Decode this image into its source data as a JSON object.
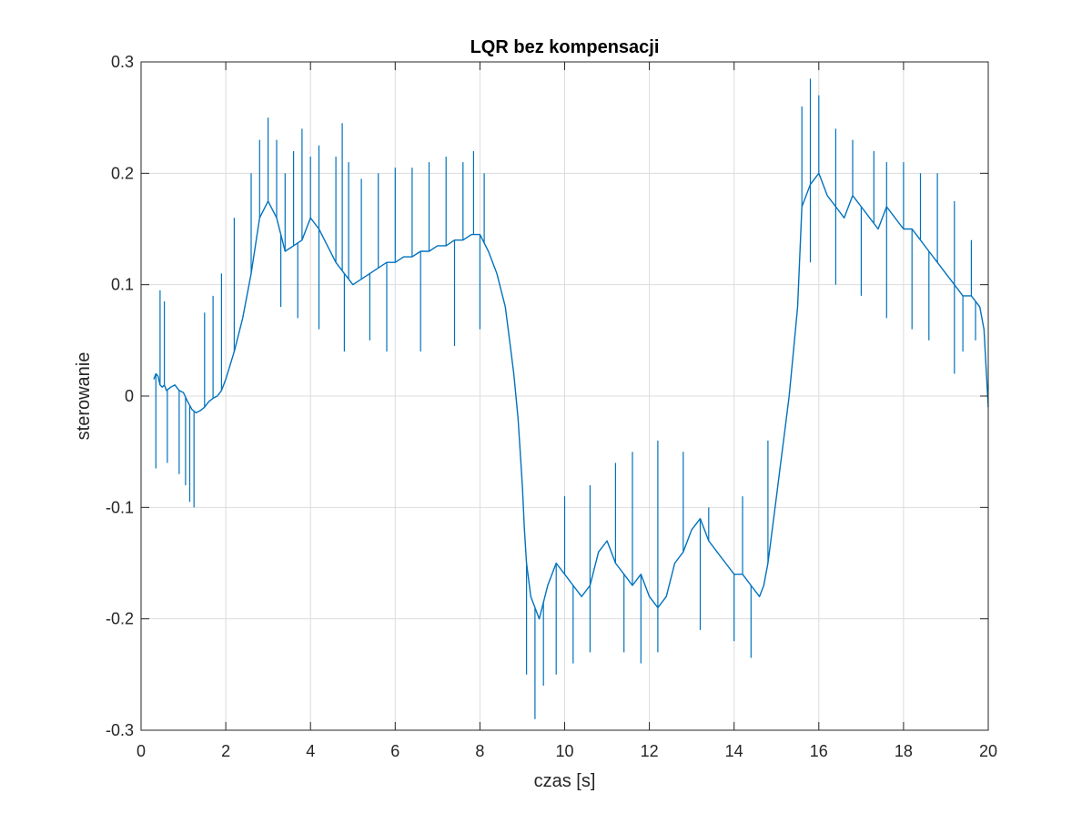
{
  "chart_data": {
    "type": "line",
    "title": "LQR bez kompensacji",
    "xlabel": "czas [s]",
    "ylabel": "sterowanie",
    "xlim": [
      0,
      20
    ],
    "ylim": [
      -0.3,
      0.3
    ],
    "grid": true,
    "legend": "none",
    "x_ticks": [
      0,
      2,
      4,
      6,
      8,
      10,
      12,
      14,
      16,
      18,
      20
    ],
    "x_tick_labels": [
      "0",
      "2",
      "4",
      "6",
      "8",
      "10",
      "12",
      "14",
      "16",
      "18",
      "20"
    ],
    "y_ticks": [
      -0.3,
      -0.2,
      -0.1,
      0,
      0.1,
      0.2,
      0.3
    ],
    "y_tick_labels": [
      "-0.3",
      "-0.2",
      "-0.1",
      "0",
      "0.1",
      "0.2",
      "0.3"
    ],
    "series": [
      {
        "color": "#0072BD",
        "x": [
          0.3,
          0.35,
          0.4,
          0.45,
          0.5,
          0.55,
          0.6,
          0.7,
          0.8,
          0.9,
          1.0,
          1.1,
          1.2,
          1.3,
          1.4,
          1.5,
          1.6,
          1.7,
          1.8,
          1.9,
          2.0,
          2.2,
          2.4,
          2.6,
          2.8,
          3.0,
          3.2,
          3.4,
          3.6,
          3.8,
          4.0,
          4.2,
          4.4,
          4.6,
          4.8,
          5.0,
          5.2,
          5.4,
          5.6,
          5.8,
          6.0,
          6.2,
          6.4,
          6.6,
          6.8,
          7.0,
          7.2,
          7.4,
          7.6,
          7.8,
          8.0,
          8.2,
          8.4,
          8.6,
          8.7,
          8.8,
          8.9,
          9.0,
          9.05,
          9.1,
          9.2,
          9.4,
          9.6,
          9.8,
          10.0,
          10.2,
          10.4,
          10.6,
          10.8,
          11.0,
          11.2,
          11.4,
          11.6,
          11.8,
          12.0,
          12.2,
          12.4,
          12.6,
          12.8,
          13.0,
          13.2,
          13.4,
          13.6,
          13.8,
          14.0,
          14.2,
          14.4,
          14.6,
          14.7,
          14.8,
          14.9,
          15.0,
          15.1,
          15.2,
          15.3,
          15.4,
          15.5,
          15.6,
          15.8,
          16.0,
          16.2,
          16.4,
          16.6,
          16.8,
          17.0,
          17.2,
          17.4,
          17.6,
          17.8,
          18.0,
          18.2,
          18.4,
          18.6,
          18.8,
          19.0,
          19.2,
          19.4,
          19.6,
          19.8,
          19.9,
          20.0
        ],
        "y": [
          0.015,
          0.02,
          0.018,
          0.01,
          0.008,
          0.01,
          0.005,
          0.008,
          0.01,
          0.005,
          0.003,
          -0.005,
          -0.012,
          -0.015,
          -0.013,
          -0.01,
          -0.005,
          -0.002,
          0.0,
          0.005,
          0.015,
          0.04,
          0.07,
          0.11,
          0.16,
          0.175,
          0.16,
          0.13,
          0.135,
          0.14,
          0.16,
          0.15,
          0.135,
          0.12,
          0.11,
          0.1,
          0.105,
          0.11,
          0.115,
          0.12,
          0.12,
          0.125,
          0.125,
          0.13,
          0.13,
          0.135,
          0.135,
          0.14,
          0.14,
          0.145,
          0.145,
          0.13,
          0.11,
          0.08,
          0.05,
          0.02,
          -0.02,
          -0.08,
          -0.12,
          -0.15,
          -0.18,
          -0.2,
          -0.17,
          -0.15,
          -0.16,
          -0.17,
          -0.18,
          -0.17,
          -0.14,
          -0.13,
          -0.15,
          -0.16,
          -0.17,
          -0.16,
          -0.18,
          -0.19,
          -0.18,
          -0.15,
          -0.14,
          -0.12,
          -0.11,
          -0.13,
          -0.14,
          -0.15,
          -0.16,
          -0.16,
          -0.17,
          -0.18,
          -0.17,
          -0.15,
          -0.12,
          -0.09,
          -0.06,
          -0.03,
          0.0,
          0.04,
          0.08,
          0.17,
          0.19,
          0.2,
          0.18,
          0.17,
          0.16,
          0.18,
          0.17,
          0.16,
          0.15,
          0.17,
          0.16,
          0.15,
          0.15,
          0.14,
          0.13,
          0.12,
          0.11,
          0.1,
          0.09,
          0.09,
          0.08,
          0.06,
          -0.01
        ],
        "spikes": [
          [
            0.35,
            -0.065
          ],
          [
            0.45,
            0.095
          ],
          [
            0.55,
            0.085
          ],
          [
            0.62,
            -0.06
          ],
          [
            0.9,
            -0.07
          ],
          [
            1.05,
            -0.08
          ],
          [
            1.15,
            -0.095
          ],
          [
            1.25,
            -0.1
          ],
          [
            1.5,
            0.075
          ],
          [
            1.7,
            0.09
          ],
          [
            1.9,
            0.11
          ],
          [
            2.2,
            0.16
          ],
          [
            2.6,
            0.2
          ],
          [
            2.8,
            0.23
          ],
          [
            3.0,
            0.25
          ],
          [
            3.2,
            0.23
          ],
          [
            3.4,
            0.2
          ],
          [
            3.6,
            0.22
          ],
          [
            3.8,
            0.24
          ],
          [
            4.0,
            0.215
          ],
          [
            4.2,
            0.225
          ],
          [
            4.6,
            0.215
          ],
          [
            4.75,
            0.245
          ],
          [
            4.9,
            0.21
          ],
          [
            5.2,
            0.195
          ],
          [
            5.6,
            0.2
          ],
          [
            6.0,
            0.205
          ],
          [
            6.4,
            0.205
          ],
          [
            6.8,
            0.21
          ],
          [
            7.2,
            0.215
          ],
          [
            7.6,
            0.21
          ],
          [
            7.85,
            0.22
          ],
          [
            8.1,
            0.2
          ],
          [
            3.3,
            0.08
          ],
          [
            3.7,
            0.07
          ],
          [
            4.2,
            0.06
          ],
          [
            4.8,
            0.04
          ],
          [
            5.4,
            0.05
          ],
          [
            5.8,
            0.04
          ],
          [
            6.6,
            0.04
          ],
          [
            7.4,
            0.045
          ],
          [
            8.0,
            0.06
          ],
          [
            9.1,
            -0.25
          ],
          [
            9.3,
            -0.29
          ],
          [
            9.5,
            -0.26
          ],
          [
            9.8,
            -0.25
          ],
          [
            10.2,
            -0.24
          ],
          [
            10.6,
            -0.23
          ],
          [
            11.4,
            -0.23
          ],
          [
            11.8,
            -0.24
          ],
          [
            12.2,
            -0.23
          ],
          [
            13.2,
            -0.21
          ],
          [
            14.0,
            -0.22
          ],
          [
            14.4,
            -0.235
          ],
          [
            10.0,
            -0.09
          ],
          [
            10.6,
            -0.08
          ],
          [
            11.2,
            -0.06
          ],
          [
            11.6,
            -0.05
          ],
          [
            12.2,
            -0.04
          ],
          [
            12.8,
            -0.05
          ],
          [
            13.4,
            -0.1
          ],
          [
            14.2,
            -0.09
          ],
          [
            14.8,
            -0.04
          ],
          [
            15.6,
            0.26
          ],
          [
            15.8,
            0.285
          ],
          [
            16.0,
            0.27
          ],
          [
            16.4,
            0.24
          ],
          [
            16.8,
            0.23
          ],
          [
            17.3,
            0.22
          ],
          [
            17.6,
            0.21
          ],
          [
            18.0,
            0.21
          ],
          [
            18.4,
            0.2
          ],
          [
            18.8,
            0.2
          ],
          [
            19.2,
            0.175
          ],
          [
            19.6,
            0.14
          ],
          [
            15.8,
            0.12
          ],
          [
            16.4,
            0.1
          ],
          [
            17.0,
            0.09
          ],
          [
            17.6,
            0.07
          ],
          [
            18.2,
            0.06
          ],
          [
            18.6,
            0.05
          ],
          [
            19.2,
            0.02
          ],
          [
            19.4,
            0.04
          ],
          [
            19.7,
            0.05
          ]
        ]
      }
    ]
  }
}
